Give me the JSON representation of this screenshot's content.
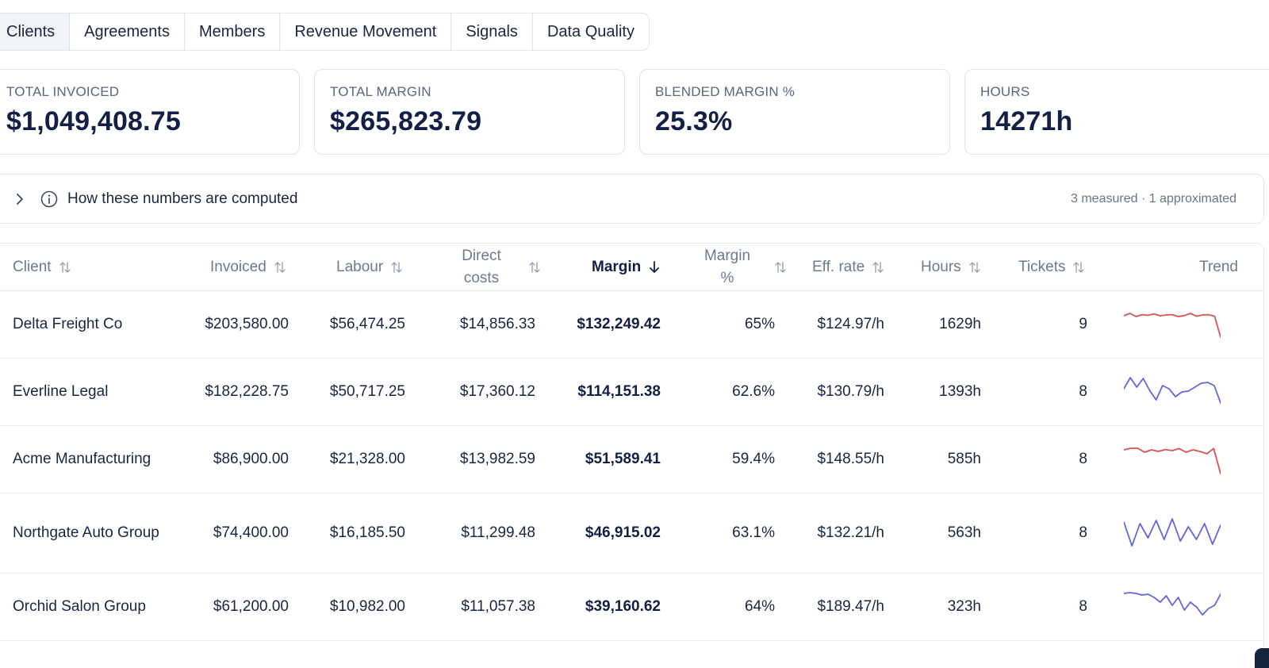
{
  "tabs": [
    {
      "label": "Clients",
      "active": true
    },
    {
      "label": "Agreements"
    },
    {
      "label": "Members"
    },
    {
      "label": "Revenue Movement"
    },
    {
      "label": "Signals"
    },
    {
      "label": "Data Quality"
    }
  ],
  "kpis": [
    {
      "label": "TOTAL INVOICED",
      "value": "$1,049,408.75"
    },
    {
      "label": "TOTAL MARGIN",
      "value": "$265,823.79"
    },
    {
      "label": "BLENDED MARGIN %",
      "value": "25.3%"
    },
    {
      "label": "HOURS",
      "value": "14271h"
    }
  ],
  "explainer": {
    "title": "How these numbers are computed",
    "meta": "3 measured · 1 approximated",
    "icons": [
      "chevron-right-icon",
      "info-icon"
    ]
  },
  "table": {
    "columns": [
      {
        "label": "Client",
        "sort": "none"
      },
      {
        "label": "Invoiced",
        "sort": "none"
      },
      {
        "label": "Labour",
        "sort": "none"
      },
      {
        "label": "Direct costs",
        "sort": "none"
      },
      {
        "label": "Margin",
        "sort": "desc"
      },
      {
        "label": "Margin %",
        "sort": "none"
      },
      {
        "label": "Eff. rate",
        "sort": "none"
      },
      {
        "label": "Hours",
        "sort": "none"
      },
      {
        "label": "Tickets",
        "sort": "none"
      },
      {
        "label": "Trend"
      }
    ],
    "rows": [
      {
        "client": "Delta Freight Co",
        "invoiced": "$203,580.00",
        "labour": "$56,474.25",
        "direct": "$14,856.33",
        "margin": "$132,249.42",
        "margin_pct": "65%",
        "eff_rate": "$124.97/h",
        "hours": "1629h",
        "tickets": "9",
        "trend": {
          "color": "#d9534f",
          "values": [
            0.55,
            0.7,
            0.5,
            0.62,
            0.58,
            0.66,
            0.55,
            0.6,
            0.62,
            0.5,
            0.56,
            0.7,
            0.52,
            0.6,
            0.62,
            0.52,
            -0.8
          ]
        }
      },
      {
        "client": "Everline Legal",
        "invoiced": "$182,228.75",
        "labour": "$50,717.25",
        "direct": "$17,360.12",
        "margin": "$114,151.38",
        "margin_pct": "62.6%",
        "eff_rate": "$130.79/h",
        "hours": "1393h",
        "tickets": "8",
        "trend": {
          "color": "#6366d9",
          "values": [
            0.2,
            0.9,
            0.3,
            0.85,
            0.1,
            -0.5,
            0.4,
            0.2,
            -0.3,
            0.0,
            0.05,
            0.3,
            0.55,
            0.6,
            0.4,
            -0.7
          ]
        }
      },
      {
        "client": "Acme Manufacturing",
        "invoiced": "$86,900.00",
        "labour": "$21,328.00",
        "direct": "$13,982.59",
        "margin": "$51,589.41",
        "margin_pct": "59.4%",
        "eff_rate": "$148.55/h",
        "hours": "585h",
        "tickets": "8",
        "trend": {
          "color": "#d9534f",
          "values": [
            0.6,
            0.7,
            0.7,
            0.45,
            0.6,
            0.5,
            0.62,
            0.55,
            0.68,
            0.45,
            0.6,
            0.5,
            0.35,
            0.68,
            -0.9
          ]
        }
      },
      {
        "client": "Northgate Auto Group",
        "invoiced": "$74,400.00",
        "labour": "$16,185.50",
        "direct": "$11,299.48",
        "margin": "$46,915.02",
        "margin_pct": "63.1%",
        "eff_rate": "$132.21/h",
        "hours": "563h",
        "tickets": "8",
        "trend": {
          "color": "#6366d9",
          "values": [
            0.7,
            -0.8,
            0.6,
            -0.3,
            0.8,
            -0.4,
            0.9,
            -0.5,
            0.4,
            -0.4,
            0.6,
            -0.7,
            0.5
          ]
        }
      },
      {
        "client": "Orchid Salon Group",
        "invoiced": "$61,200.00",
        "labour": "$10,982.00",
        "direct": "$11,057.38",
        "margin": "$39,160.62",
        "margin_pct": "64%",
        "eff_rate": "$189.47/h",
        "hours": "323h",
        "tickets": "8",
        "trend": {
          "color": "#6366d9",
          "values": [
            0.85,
            0.9,
            0.85,
            0.75,
            0.8,
            0.6,
            0.3,
            0.7,
            0.1,
            0.6,
            -0.2,
            0.3,
            0.0,
            -0.5,
            -0.1,
            0.1,
            0.8
          ]
        }
      }
    ]
  }
}
